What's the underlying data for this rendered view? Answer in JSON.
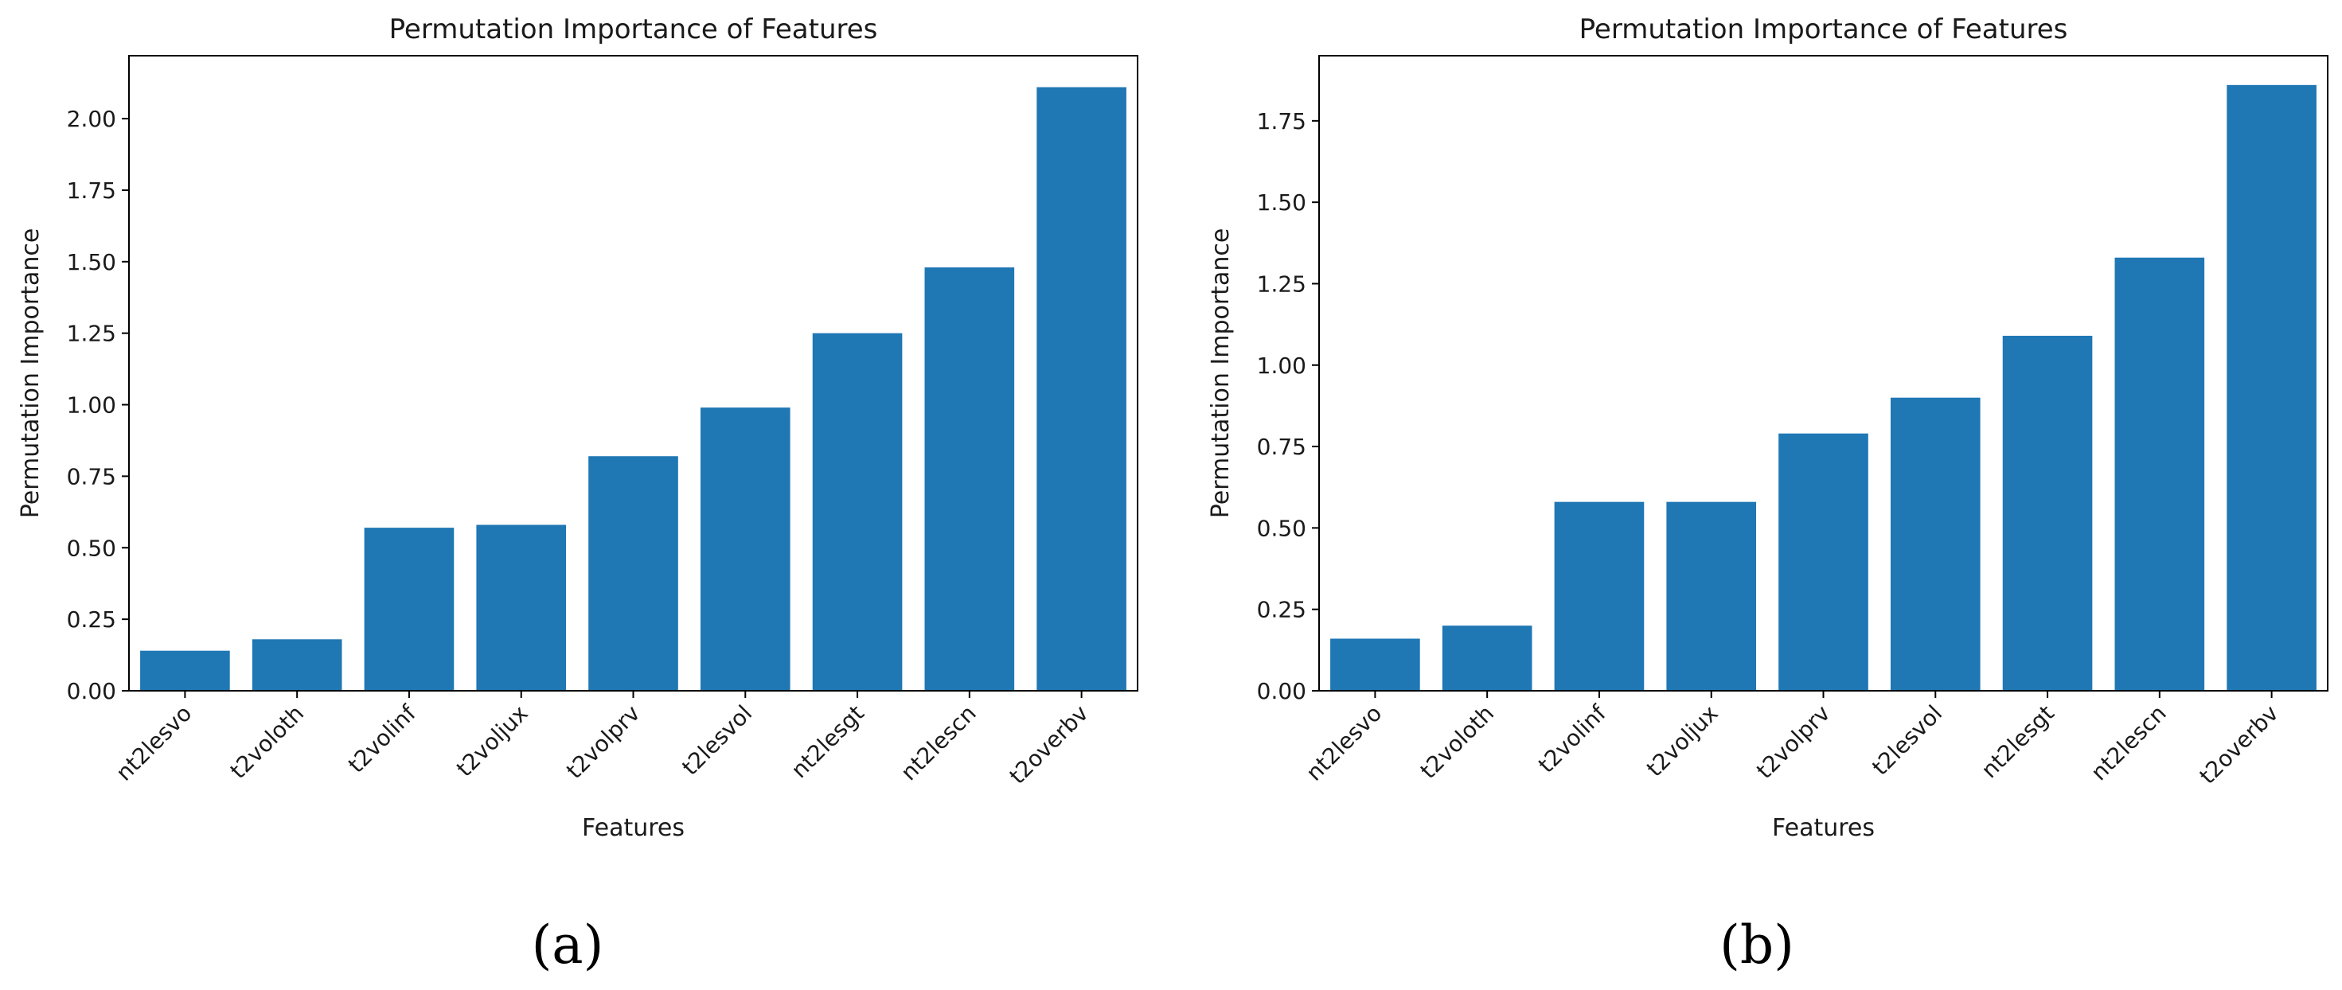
{
  "colors": {
    "bar": "#1f77b4",
    "axis": "#000000",
    "text": "#1a1a1a"
  },
  "chart_data": [
    {
      "type": "bar",
      "panel_label": "(a)",
      "title": "Permutation Importance of Features",
      "xlabel": "Features",
      "ylabel": "Permutation Importance",
      "categories": [
        "nt2lesvo",
        "t2voloth",
        "t2volinf",
        "t2voljux",
        "t2volprv",
        "t2lesvol",
        "nt2lesgt",
        "nt2lescn",
        "t2overbv"
      ],
      "values": [
        0.14,
        0.18,
        0.57,
        0.58,
        0.82,
        0.99,
        1.25,
        1.48,
        2.11
      ],
      "ylim": [
        0,
        2.22
      ],
      "yticks": [
        0.0,
        0.25,
        0.5,
        0.75,
        1.0,
        1.25,
        1.5,
        1.75,
        2.0
      ],
      "ytick_labels": [
        "0.00",
        "0.25",
        "0.50",
        "0.75",
        "1.00",
        "1.25",
        "1.50",
        "1.75",
        "2.00"
      ],
      "grid": false,
      "legend": "none"
    },
    {
      "type": "bar",
      "panel_label": "(b)",
      "title": "Permutation Importance of Features",
      "xlabel": "Features",
      "ylabel": "Permutation Importance",
      "categories": [
        "nt2lesvo",
        "t2voloth",
        "t2volinf",
        "t2voljux",
        "t2volprv",
        "t2lesvol",
        "nt2lesgt",
        "nt2lescn",
        "t2overbv"
      ],
      "values": [
        0.16,
        0.2,
        0.58,
        0.58,
        0.79,
        0.9,
        1.09,
        1.33,
        1.86
      ],
      "ylim": [
        0,
        1.95
      ],
      "yticks": [
        0.0,
        0.25,
        0.5,
        0.75,
        1.0,
        1.25,
        1.5,
        1.75
      ],
      "ytick_labels": [
        "0.00",
        "0.25",
        "0.50",
        "0.75",
        "1.00",
        "1.25",
        "1.50",
        "1.75"
      ],
      "grid": false,
      "legend": "none"
    }
  ]
}
